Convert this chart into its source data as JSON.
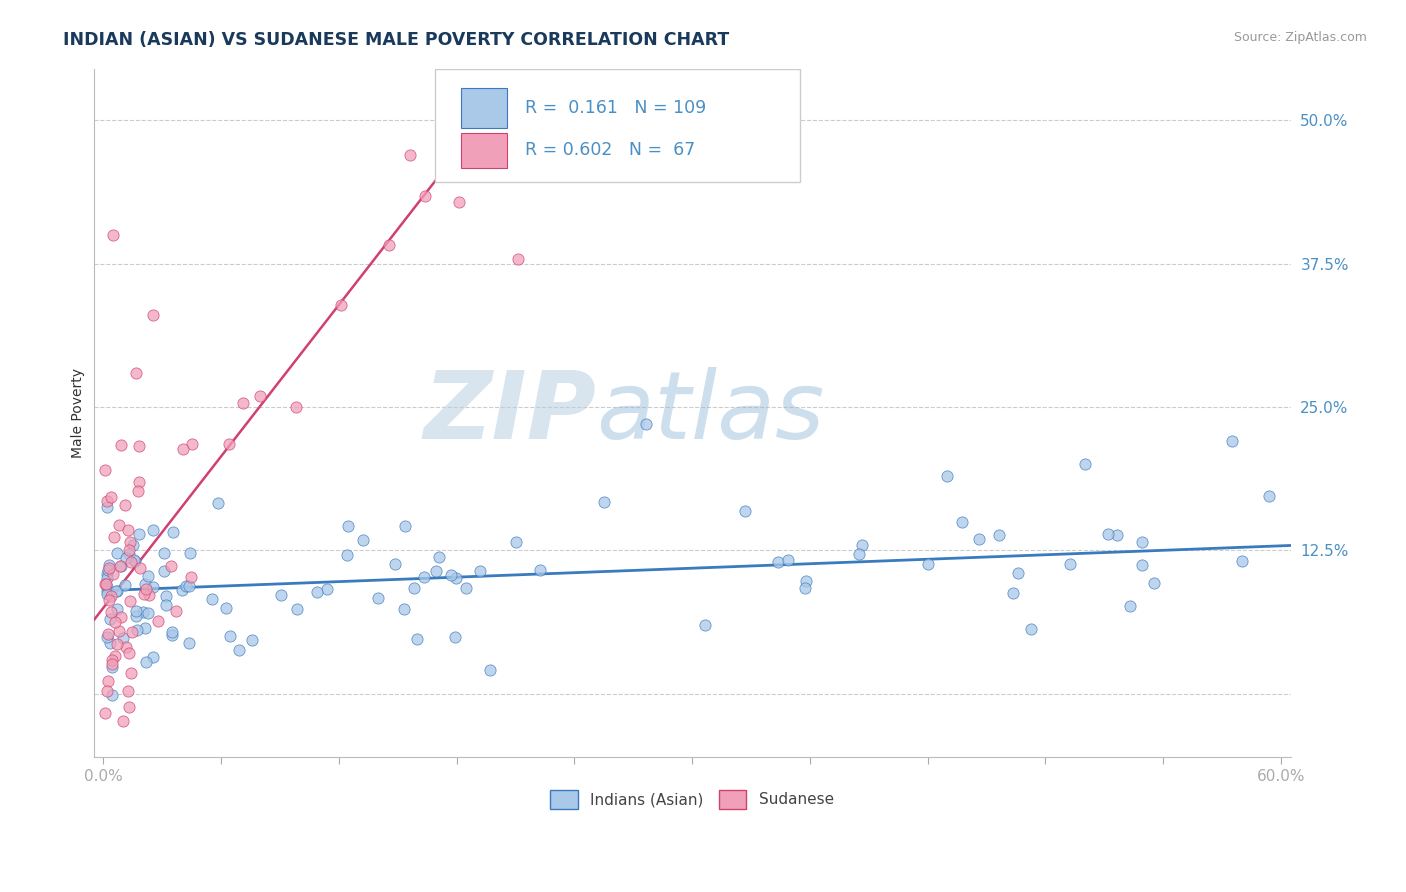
{
  "title": "INDIAN (ASIAN) VS SUDANESE MALE POVERTY CORRELATION CHART",
  "source_text": "Source: ZipAtlas.com",
  "ylabel": "Male Poverty",
  "xlim": [
    -0.005,
    0.605
  ],
  "ylim": [
    -0.055,
    0.545
  ],
  "color_indian": "#aac8e8",
  "color_sudanese": "#f0a0b8",
  "color_line_indian": "#3a7abf",
  "color_line_sudanese": "#d04070",
  "watermark_zip": "ZIP",
  "watermark_atlas": "atlas",
  "background_color": "#ffffff",
  "grid_color": "#cccccc",
  "title_color": "#1a3a5c",
  "tick_color": "#4a90c4",
  "ylabel_color": "#333333"
}
